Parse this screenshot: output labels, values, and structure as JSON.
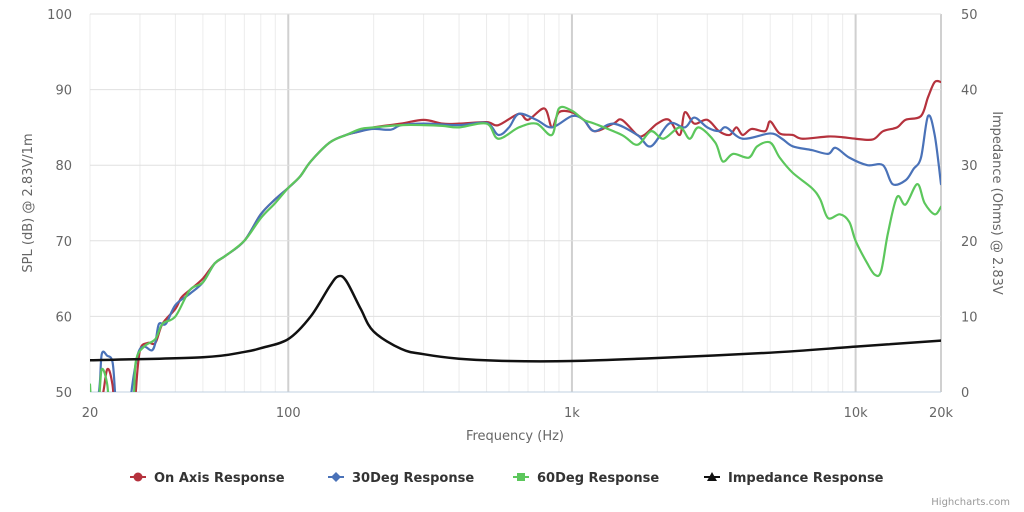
{
  "chart_data": {
    "type": "line",
    "xscale": "log",
    "xlabel": "Frequency (Hz)",
    "ylabel": "SPL (dB) @ 2.83V/1m",
    "y2label": "Impedance (Ohms) @ 2.83V",
    "xlim": [
      20,
      20000
    ],
    "ylim": [
      50,
      100
    ],
    "y2lim": [
      0,
      50
    ],
    "grid": true,
    "legend_position": "bottom",
    "x_ticks": [
      {
        "v": 20,
        "label": "20"
      },
      {
        "v": 100,
        "label": "100"
      },
      {
        "v": 1000,
        "label": "1k"
      },
      {
        "v": 10000,
        "label": "10k"
      },
      {
        "v": 20000,
        "label": "20k"
      }
    ],
    "y_ticks": [
      50,
      60,
      70,
      80,
      90,
      100
    ],
    "y2_ticks": [
      0,
      10,
      20,
      30,
      40,
      50
    ],
    "credit": "Highcharts.com",
    "series": [
      {
        "name": "On Axis Response",
        "color": "#b5323d",
        "marker": "circle",
        "axis": "left",
        "points": [
          [
            20,
            45
          ],
          [
            22,
            49
          ],
          [
            23,
            53
          ],
          [
            24,
            51
          ],
          [
            25,
            45
          ],
          [
            28.5,
            45
          ],
          [
            29,
            50
          ],
          [
            30,
            55.5
          ],
          [
            32,
            56.5
          ],
          [
            34,
            56.5
          ],
          [
            36,
            59
          ],
          [
            40,
            61
          ],
          [
            42,
            62.5
          ],
          [
            45,
            63.5
          ],
          [
            50,
            65
          ],
          [
            55,
            67
          ],
          [
            60,
            68
          ],
          [
            70,
            70
          ],
          [
            80,
            73.5
          ],
          [
            90,
            75.5
          ],
          [
            100,
            77
          ],
          [
            110,
            78.5
          ],
          [
            120,
            80.5
          ],
          [
            140,
            83
          ],
          [
            160,
            84
          ],
          [
            180,
            84.5
          ],
          [
            200,
            85
          ],
          [
            250,
            85.5
          ],
          [
            300,
            86
          ],
          [
            350,
            85.5
          ],
          [
            400,
            85.5
          ],
          [
            500,
            85.7
          ],
          [
            550,
            85.3
          ],
          [
            650,
            86.8
          ],
          [
            700,
            86
          ],
          [
            800,
            87.5
          ],
          [
            850,
            85
          ],
          [
            900,
            87
          ],
          [
            1000,
            87
          ],
          [
            1100,
            86
          ],
          [
            1200,
            84.5
          ],
          [
            1400,
            85.5
          ],
          [
            1500,
            86
          ],
          [
            1700,
            84
          ],
          [
            1800,
            84
          ],
          [
            2000,
            85.5
          ],
          [
            2200,
            86
          ],
          [
            2400,
            84
          ],
          [
            2500,
            87
          ],
          [
            2700,
            85.5
          ],
          [
            3000,
            86
          ],
          [
            3300,
            84.5
          ],
          [
            3600,
            84
          ],
          [
            3800,
            85
          ],
          [
            4000,
            84
          ],
          [
            4300,
            84.8
          ],
          [
            4800,
            84.5
          ],
          [
            5000,
            85.8
          ],
          [
            5400,
            84.2
          ],
          [
            6000,
            84
          ],
          [
            6500,
            83.5
          ],
          [
            8000,
            83.8
          ],
          [
            9000,
            83.7
          ],
          [
            10000,
            83.5
          ],
          [
            11500,
            83.4
          ],
          [
            12500,
            84.5
          ],
          [
            14000,
            85
          ],
          [
            15000,
            86
          ],
          [
            17000,
            86.5
          ],
          [
            18000,
            89
          ],
          [
            19000,
            91
          ],
          [
            20000,
            91
          ]
        ]
      },
      {
        "name": "30Deg Response",
        "color": "#4a72b8",
        "marker": "diamond",
        "axis": "left",
        "points": [
          [
            20,
            45
          ],
          [
            21.5,
            50
          ],
          [
            22,
            55
          ],
          [
            23,
            54.8
          ],
          [
            24,
            54
          ],
          [
            24.5,
            50
          ],
          [
            25,
            45
          ],
          [
            27.5,
            45
          ],
          [
            28,
            50
          ],
          [
            29.5,
            55
          ],
          [
            31,
            56
          ],
          [
            33,
            55.5
          ],
          [
            34,
            56.5
          ],
          [
            35,
            59
          ],
          [
            37,
            59
          ],
          [
            40,
            61.5
          ],
          [
            45,
            63
          ],
          [
            50,
            64.5
          ],
          [
            55,
            67
          ],
          [
            60,
            68
          ],
          [
            70,
            70
          ],
          [
            80,
            73.5
          ],
          [
            90,
            75.5
          ],
          [
            100,
            77
          ],
          [
            110,
            78.5
          ],
          [
            120,
            80.5
          ],
          [
            140,
            83
          ],
          [
            160,
            84
          ],
          [
            180,
            84.5
          ],
          [
            200,
            84.8
          ],
          [
            230,
            84.7
          ],
          [
            250,
            85.3
          ],
          [
            300,
            85.5
          ],
          [
            400,
            85.3
          ],
          [
            500,
            85.6
          ],
          [
            550,
            84
          ],
          [
            600,
            85
          ],
          [
            650,
            86.8
          ],
          [
            750,
            86
          ],
          [
            850,
            85
          ],
          [
            1000,
            86.5
          ],
          [
            1100,
            86
          ],
          [
            1200,
            84.5
          ],
          [
            1400,
            85.5
          ],
          [
            1700,
            84
          ],
          [
            1900,
            82.5
          ],
          [
            2200,
            85.5
          ],
          [
            2500,
            85
          ],
          [
            2700,
            86.3
          ],
          [
            3000,
            85
          ],
          [
            3300,
            84.5
          ],
          [
            3500,
            85
          ],
          [
            4000,
            83.5
          ],
          [
            5000,
            84.2
          ],
          [
            5500,
            83.5
          ],
          [
            6000,
            82.5
          ],
          [
            7000,
            82
          ],
          [
            8000,
            81.5
          ],
          [
            8500,
            82.3
          ],
          [
            9500,
            81
          ],
          [
            11000,
            80
          ],
          [
            12500,
            80
          ],
          [
            13500,
            77.5
          ],
          [
            15000,
            78
          ],
          [
            16000,
            79.5
          ],
          [
            17000,
            81
          ],
          [
            18000,
            86.5
          ],
          [
            19000,
            84
          ],
          [
            20000,
            77.5
          ]
        ]
      },
      {
        "name": "60Deg Response",
        "color": "#5cc75c",
        "marker": "square",
        "axis": "left",
        "points": [
          [
            20,
            51
          ],
          [
            20.5,
            45
          ],
          [
            21.5,
            49
          ],
          [
            22,
            53
          ],
          [
            23,
            51
          ],
          [
            24,
            45
          ],
          [
            28,
            47
          ],
          [
            29,
            54
          ],
          [
            31,
            56
          ],
          [
            34,
            57
          ],
          [
            36,
            59
          ],
          [
            40,
            60
          ],
          [
            45,
            63.5
          ],
          [
            50,
            64.5
          ],
          [
            55,
            67
          ],
          [
            60,
            68
          ],
          [
            70,
            70
          ],
          [
            80,
            73
          ],
          [
            90,
            75
          ],
          [
            100,
            77
          ],
          [
            110,
            78.5
          ],
          [
            120,
            80.5
          ],
          [
            140,
            83
          ],
          [
            160,
            84
          ],
          [
            180,
            84.8
          ],
          [
            200,
            85
          ],
          [
            250,
            85.3
          ],
          [
            300,
            85.3
          ],
          [
            350,
            85.2
          ],
          [
            400,
            85
          ],
          [
            500,
            85.5
          ],
          [
            550,
            83.5
          ],
          [
            650,
            85
          ],
          [
            750,
            85.5
          ],
          [
            850,
            84
          ],
          [
            900,
            87.5
          ],
          [
            1000,
            87.2
          ],
          [
            1100,
            86
          ],
          [
            1200,
            85.5
          ],
          [
            1500,
            84
          ],
          [
            1700,
            82.7
          ],
          [
            1900,
            84.5
          ],
          [
            2100,
            83.5
          ],
          [
            2400,
            85
          ],
          [
            2600,
            83.5
          ],
          [
            2800,
            85
          ],
          [
            3200,
            83
          ],
          [
            3400,
            80.5
          ],
          [
            3700,
            81.5
          ],
          [
            4200,
            81
          ],
          [
            4500,
            82.5
          ],
          [
            5000,
            83
          ],
          [
            5400,
            81
          ],
          [
            6000,
            79
          ],
          [
            7000,
            77
          ],
          [
            7500,
            75.5
          ],
          [
            8000,
            73
          ],
          [
            8800,
            73.5
          ],
          [
            9500,
            72.5
          ],
          [
            10000,
            70
          ],
          [
            11000,
            67
          ],
          [
            11700,
            65.5
          ],
          [
            12300,
            66
          ],
          [
            13000,
            71
          ],
          [
            14000,
            75.8
          ],
          [
            15000,
            74.8
          ],
          [
            16500,
            77.5
          ],
          [
            17500,
            75
          ],
          [
            19000,
            73.5
          ],
          [
            20000,
            74.5
          ]
        ]
      },
      {
        "name": "Impedance Response",
        "color": "#111111",
        "marker": "triangle",
        "axis": "right",
        "points": [
          [
            20,
            4.2
          ],
          [
            50,
            4.6
          ],
          [
            70,
            5.3
          ],
          [
            80,
            5.8
          ],
          [
            100,
            7
          ],
          [
            120,
            10
          ],
          [
            140,
            14
          ],
          [
            150,
            15.3
          ],
          [
            160,
            14.7
          ],
          [
            180,
            11
          ],
          [
            200,
            8
          ],
          [
            250,
            5.7
          ],
          [
            300,
            5
          ],
          [
            400,
            4.4
          ],
          [
            600,
            4.1
          ],
          [
            1000,
            4.1
          ],
          [
            2000,
            4.5
          ],
          [
            5000,
            5.2
          ],
          [
            10000,
            6
          ],
          [
            20000,
            6.8
          ]
        ]
      }
    ]
  }
}
